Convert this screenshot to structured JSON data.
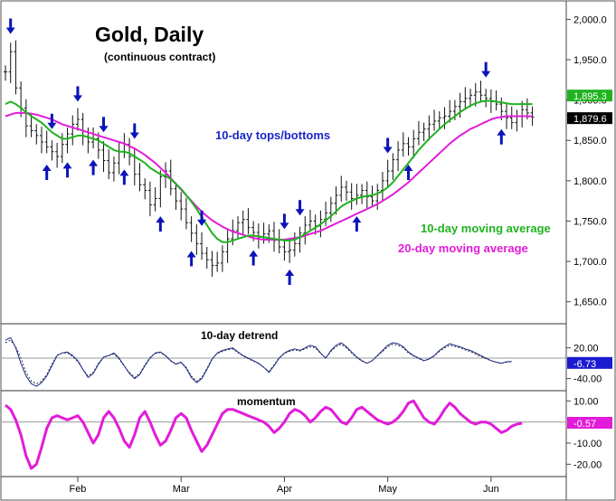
{
  "header": {
    "title": "Gold, Daily",
    "subtitle": "(continuous contract)"
  },
  "annotations": {
    "tops_bottoms": "10-day tops/bottoms",
    "ma10": "10-day moving average",
    "ma20": "20-day moving average",
    "detrend": "10-day detrend",
    "momentum": "momentum"
  },
  "colors": {
    "arrow": "#0b14b8",
    "ma10": "#1fb31f",
    "ma20": "#e21bd9",
    "detrend_line": "#1b2a8a",
    "momentum_line": "#e21bd9",
    "text_blue": "#1826c8",
    "text_green": "#1fb31f",
    "text_magenta": "#e21bd9"
  },
  "chart_data": [
    {
      "type": "ohlc",
      "panel": "price",
      "y_ticks": [
        "2,000.0",
        "1,950.0",
        "1,900.0",
        "1,850.0",
        "1,800.0",
        "1,750.0",
        "1,700.0",
        "1,650.0"
      ],
      "y_tick_values": [
        2000,
        1950,
        1900,
        1850,
        1800,
        1750,
        1700,
        1650
      ],
      "ylim": [
        1625,
        2015
      ],
      "x_ticks": [
        "Feb",
        "Mar",
        "Apr",
        "May",
        "Jun"
      ],
      "x_tick_positions": [
        14,
        34,
        54,
        74,
        94
      ],
      "x_range": [
        0,
        104
      ],
      "last_values": [
        {
          "series": "10-day moving average",
          "value": "1,895.3"
        },
        {
          "series": "20-day moving average",
          "value": "1,879.6"
        }
      ],
      "close": [
        1935,
        1960,
        1915,
        1890,
        1868,
        1862,
        1856,
        1848,
        1842,
        1836,
        1830,
        1845,
        1858,
        1870,
        1876,
        1855,
        1848,
        1852,
        1838,
        1825,
        1810,
        1822,
        1836,
        1845,
        1830,
        1808,
        1795,
        1788,
        1770,
        1778,
        1805,
        1812,
        1790,
        1775,
        1765,
        1748,
        1735,
        1722,
        1710,
        1702,
        1695,
        1698,
        1712,
        1728,
        1738,
        1748,
        1752,
        1742,
        1736,
        1730,
        1734,
        1738,
        1726,
        1718,
        1712,
        1714,
        1722,
        1735,
        1745,
        1750,
        1744,
        1752,
        1760,
        1772,
        1782,
        1792,
        1786,
        1778,
        1782,
        1788,
        1780,
        1775,
        1788,
        1800,
        1812,
        1826,
        1838,
        1846,
        1842,
        1852,
        1860,
        1864,
        1870,
        1874,
        1878,
        1880,
        1886,
        1892,
        1898,
        1902,
        1906,
        1910,
        1906,
        1902,
        1898,
        1895,
        1886,
        1878,
        1872,
        1880,
        1888,
        1884,
        1879
      ],
      "ma10": [
        1895,
        1898,
        1895,
        1890,
        1885,
        1880,
        1876,
        1872,
        1866,
        1860,
        1856,
        1852,
        1852,
        1854,
        1856,
        1856,
        1854,
        1852,
        1850,
        1846,
        1842,
        1838,
        1836,
        1836,
        1834,
        1830,
        1826,
        1822,
        1816,
        1812,
        1808,
        1806,
        1802,
        1796,
        1790,
        1782,
        1774,
        1765,
        1755,
        1745,
        1735,
        1728,
        1724,
        1724,
        1726,
        1728,
        1730,
        1732,
        1732,
        1731,
        1730,
        1729,
        1728,
        1727,
        1726,
        1726,
        1727,
        1730,
        1734,
        1738,
        1742,
        1746,
        1751,
        1756,
        1762,
        1768,
        1772,
        1775,
        1778,
        1780,
        1781,
        1782,
        1784,
        1787,
        1792,
        1798,
        1806,
        1814,
        1822,
        1830,
        1838,
        1845,
        1852,
        1858,
        1864,
        1870,
        1875,
        1880,
        1885,
        1889,
        1893,
        1896,
        1898,
        1899,
        1899,
        1898,
        1897,
        1896,
        1895,
        1895,
        1895,
        1895,
        1895
      ],
      "ma20": [
        1880,
        1882,
        1884,
        1884,
        1884,
        1883,
        1882,
        1880,
        1878,
        1876,
        1873,
        1870,
        1868,
        1866,
        1864,
        1862,
        1860,
        1858,
        1856,
        1854,
        1852,
        1850,
        1848,
        1846,
        1843,
        1840,
        1836,
        1832,
        1827,
        1822,
        1816,
        1810,
        1803,
        1796,
        1789,
        1782,
        1775,
        1768,
        1762,
        1756,
        1751,
        1747,
        1743,
        1740,
        1737,
        1735,
        1733,
        1731,
        1729,
        1728,
        1727,
        1727,
        1727,
        1727,
        1727,
        1728,
        1729,
        1730,
        1732,
        1734,
        1736,
        1738,
        1741,
        1744,
        1747,
        1750,
        1753,
        1756,
        1759,
        1762,
        1765,
        1768,
        1771,
        1775,
        1779,
        1783,
        1788,
        1793,
        1798,
        1804,
        1810,
        1816,
        1822,
        1828,
        1834,
        1840,
        1846,
        1851,
        1856,
        1860,
        1864,
        1867,
        1870,
        1873,
        1876,
        1878,
        1879,
        1880,
        1880,
        1880,
        1880,
        1880,
        1879.6
      ],
      "tops_arrow_index": [
        1,
        9,
        14,
        19,
        25,
        38,
        54,
        57,
        74,
        93
      ],
      "bottoms_arrow_index": [
        8,
        12,
        17,
        23,
        30,
        36,
        48,
        55,
        68,
        78,
        96
      ]
    },
    {
      "type": "line",
      "panel": "10-day detrend",
      "y_ticks": [
        "20.00",
        "-40.00"
      ],
      "y_tick_values": [
        20,
        -40
      ],
      "ylim": [
        -60,
        60
      ],
      "baseline": 0,
      "last_value": "-6.73",
      "values": [
        35,
        40,
        20,
        -10,
        -35,
        -50,
        -55,
        -48,
        -35,
        -15,
        5,
        10,
        12,
        5,
        -5,
        -22,
        -38,
        -30,
        -12,
        2,
        5,
        10,
        0,
        -15,
        -30,
        -40,
        -32,
        -15,
        0,
        10,
        12,
        5,
        -5,
        -12,
        -8,
        -20,
        -38,
        -48,
        -40,
        -22,
        -2,
        10,
        15,
        18,
        20,
        12,
        5,
        0,
        -5,
        -10,
        -18,
        -28,
        -15,
        0,
        10,
        15,
        18,
        15,
        20,
        25,
        22,
        10,
        0,
        15,
        25,
        30,
        22,
        12,
        2,
        -5,
        -10,
        -5,
        5,
        15,
        25,
        30,
        28,
        22,
        12,
        5,
        0,
        -5,
        -2,
        5,
        15,
        22,
        28,
        25,
        22,
        18,
        15,
        10,
        5,
        0,
        -5,
        -8,
        -10,
        -7,
        -6.73
      ],
      "values_dashed": [
        30,
        35,
        22,
        0,
        -28,
        -45,
        -50,
        -45,
        -32,
        -12,
        6,
        10,
        10,
        3,
        -7,
        -22,
        -35,
        -28,
        -10,
        2,
        5,
        8,
        -2,
        -16,
        -28,
        -38,
        -30,
        -13,
        1,
        9,
        11,
        4,
        -6,
        -11,
        -8,
        -18,
        -35,
        -45,
        -38,
        -20,
        -1,
        9,
        13,
        16,
        18,
        11,
        4,
        -1,
        -6,
        -11,
        -18,
        -26,
        -13,
        1,
        9,
        13,
        16,
        14,
        18,
        22,
        20,
        9,
        0,
        13,
        22,
        27,
        20,
        10,
        1,
        -6,
        -10,
        -5,
        4,
        13,
        22,
        27,
        25,
        20,
        10,
        4,
        -1,
        -5,
        -2,
        4,
        13,
        20,
        25,
        23,
        20,
        16,
        13,
        8,
        3,
        -1,
        -5,
        -8,
        -10,
        -8,
        -7
      ]
    },
    {
      "type": "line",
      "panel": "momentum",
      "y_ticks": [
        "10.00",
        "-10.00",
        "-20.00"
      ],
      "y_tick_values": [
        10,
        -10,
        -20
      ],
      "ylim": [
        -25,
        14
      ],
      "baseline": 0,
      "last_value": "-0.57",
      "values": [
        8,
        6,
        1,
        -6,
        -16,
        -22,
        -20,
        -12,
        -3,
        2,
        3,
        2,
        1,
        2,
        3,
        0,
        -5,
        -10,
        -6,
        2,
        5,
        2,
        -3,
        -9,
        -12,
        -6,
        2,
        5,
        0,
        -6,
        -11,
        -9,
        -4,
        2,
        4,
        2,
        -4,
        -9,
        -14,
        -11,
        -6,
        -1,
        4,
        6,
        6,
        5,
        4,
        3,
        2,
        1,
        0,
        -2,
        -5,
        -3,
        0,
        4,
        6,
        5,
        3,
        0,
        2,
        5,
        7,
        6,
        3,
        0,
        -1,
        2,
        6,
        7,
        5,
        3,
        1,
        0,
        -1,
        0,
        2,
        5,
        9,
        10,
        6,
        2,
        0,
        -1,
        2,
        6,
        9,
        7,
        4,
        2,
        0,
        -1,
        0,
        0,
        -1,
        -3,
        -5,
        -4,
        -2,
        -1,
        -0.57
      ]
    }
  ]
}
